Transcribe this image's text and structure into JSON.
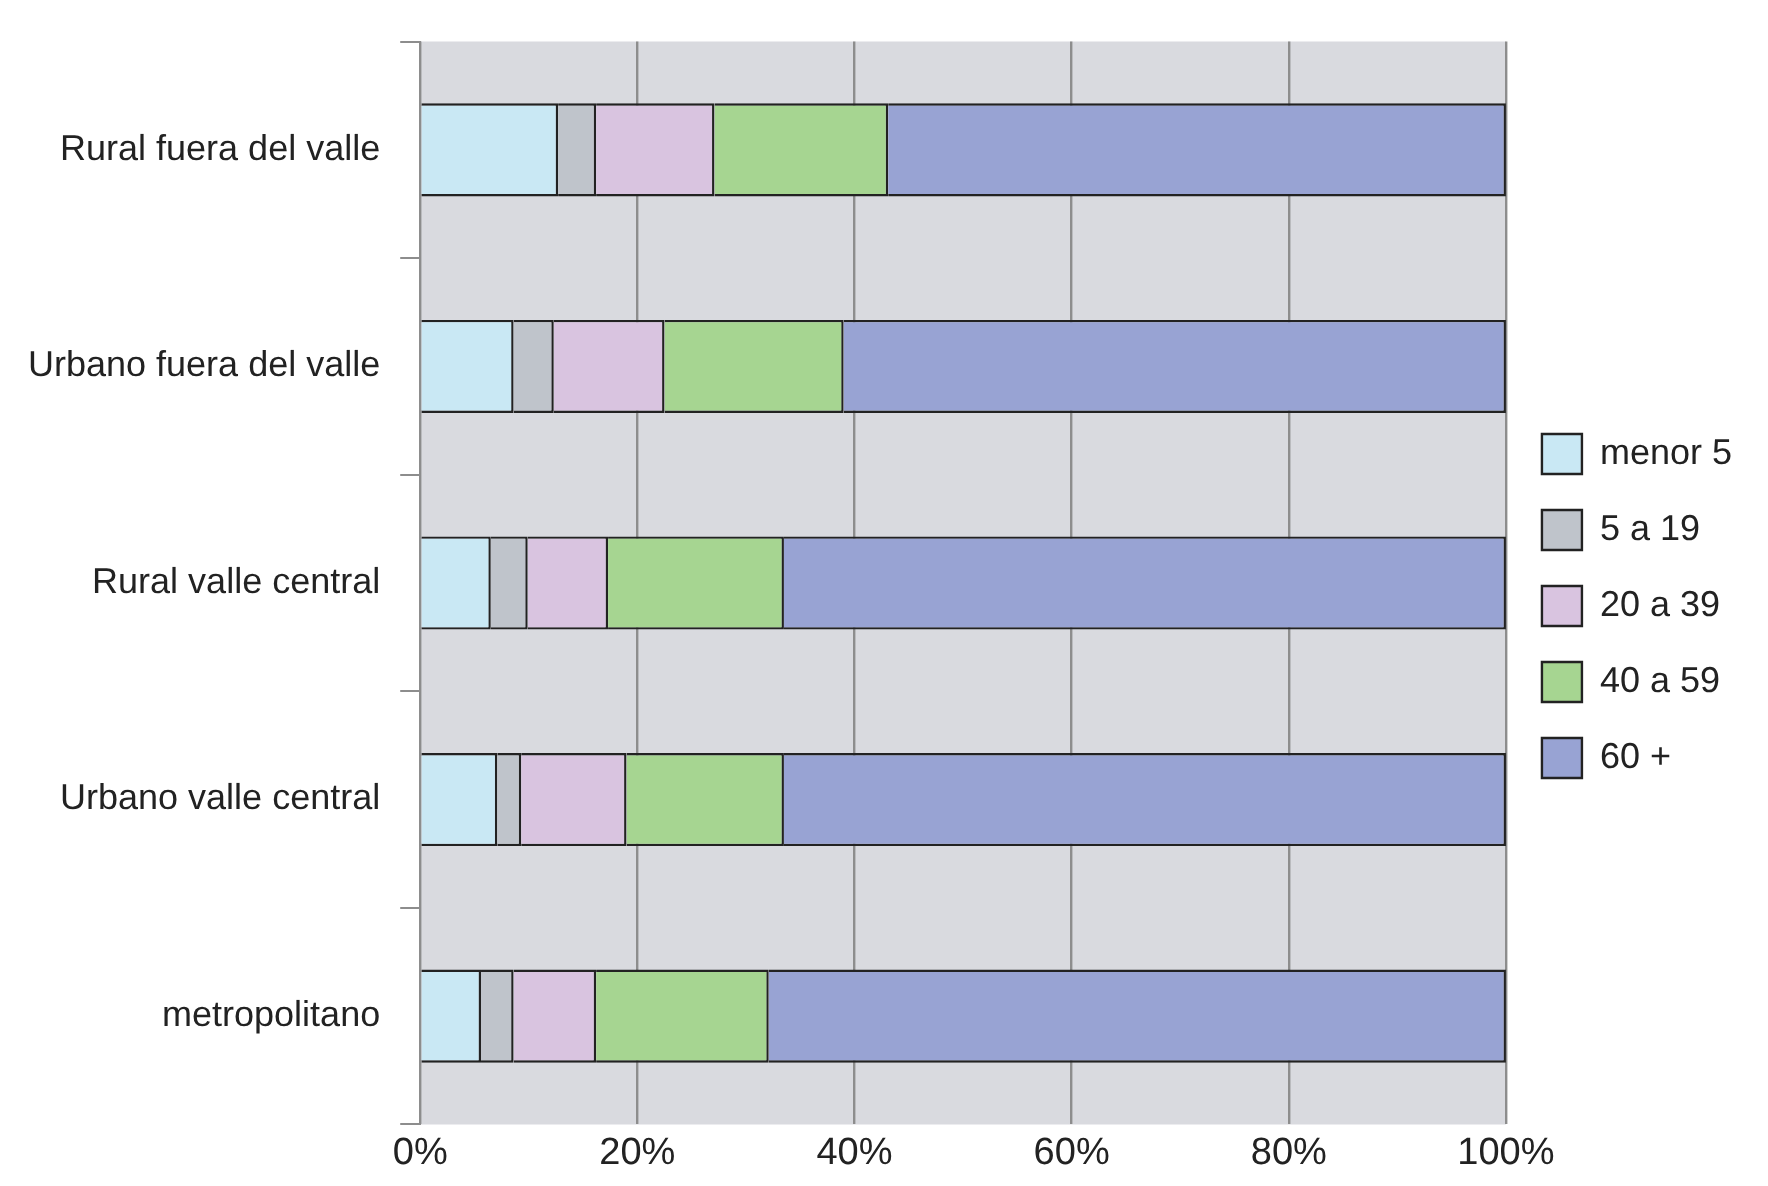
{
  "chart_data": {
    "type": "bar",
    "orientation": "horizontal",
    "stacked": true,
    "categories": [
      "Rural fuera del valle",
      "Urbano fuera del valle",
      "Rural valle central",
      "Urbano valle central",
      "metropolitano"
    ],
    "series": [
      {
        "name": "menor 5",
        "color": "#c9e8f4",
        "values": [
          12.7,
          8.6,
          6.5,
          7.1,
          5.6
        ]
      },
      {
        "name": "5 a 19",
        "color": "#bfc4cb",
        "values": [
          3.5,
          3.7,
          3.4,
          2.2,
          3.0
        ]
      },
      {
        "name": "20 a 39",
        "color": "#d9c4e0",
        "values": [
          10.9,
          10.2,
          7.4,
          9.7,
          7.6
        ]
      },
      {
        "name": "40 a 59",
        "color": "#a6d591",
        "values": [
          16.0,
          16.5,
          16.2,
          14.5,
          15.9
        ]
      },
      {
        "name": "60 +",
        "color": "#98a3d3",
        "values": [
          56.9,
          61.0,
          66.5,
          66.5,
          67.9
        ]
      }
    ],
    "xlim": [
      0,
      100
    ],
    "xticks": [
      {
        "value": 0,
        "label": "0%"
      },
      {
        "value": 20,
        "label": "20%"
      },
      {
        "value": 40,
        "label": "40%"
      },
      {
        "value": 60,
        "label": "60%"
      },
      {
        "value": 80,
        "label": "80%"
      },
      {
        "value": 100,
        "label": "100%"
      }
    ],
    "grid": "x",
    "legend": "right"
  }
}
